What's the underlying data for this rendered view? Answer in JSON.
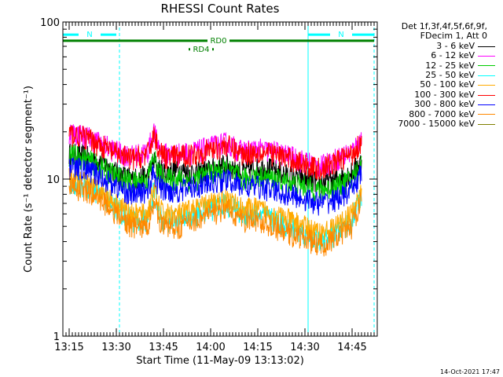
{
  "chart_data": {
    "type": "line",
    "title": "RHESSI Count Rates",
    "xlabel": "Start Time (11-May-09 13:13:02)",
    "ylabel": "Count Rate (s⁻¹ detector segment⁻¹)",
    "yscale": "log",
    "ylim": [
      1,
      100
    ],
    "xlim": [
      "13:13",
      "14:53"
    ],
    "x_ticks": [
      "13:15",
      "13:30",
      "13:45",
      "14:00",
      "14:15",
      "14:30",
      "14:45"
    ],
    "y_ticks": [
      "1",
      "10",
      "100"
    ],
    "x": [
      "13:15",
      "13:20",
      "13:25",
      "13:30",
      "13:35",
      "13:40",
      "13:42",
      "13:43",
      "13:45",
      "13:50",
      "13:55",
      "14:00",
      "14:05",
      "14:10",
      "14:15",
      "14:20",
      "14:25",
      "14:30",
      "14:35",
      "14:40",
      "14:45",
      "14:48"
    ],
    "series": [
      {
        "name": "3 - 6 keV",
        "color": "#000000",
        "values": [
          14.5,
          14,
          13,
          11,
          10,
          10.5,
          13,
          12,
          11,
          11.5,
          11,
          11.5,
          12.5,
          11,
          12,
          11.5,
          10.5,
          10,
          9.5,
          10,
          11,
          13
        ]
      },
      {
        "name": "6 - 12 keV",
        "color": "#ff00ff",
        "values": [
          20,
          19,
          17,
          15,
          14,
          15,
          20,
          17,
          14.5,
          14.5,
          15,
          16,
          17,
          15,
          15.5,
          15,
          14,
          13,
          12,
          13.5,
          15,
          18
        ]
      },
      {
        "name": "12 - 25 keV",
        "color": "#00cc00",
        "values": [
          14.5,
          13.5,
          12,
          10.5,
          9.5,
          10,
          14,
          11.5,
          10,
          10,
          10,
          11,
          11.5,
          10,
          10.5,
          10,
          9.5,
          9,
          8.5,
          9,
          10,
          12.5
        ]
      },
      {
        "name": "25 - 50 keV",
        "color": "#00ffff",
        "values": [
          9.5,
          9,
          8,
          6.5,
          5.5,
          5.5,
          8.5,
          6.5,
          5.5,
          5.5,
          6,
          6.5,
          7,
          6,
          6,
          5.5,
          5,
          4.5,
          4,
          4.5,
          5.5,
          8
        ]
      },
      {
        "name": "50 - 100 keV",
        "color": "#ffaa00",
        "values": [
          10,
          9.5,
          8.5,
          7,
          6,
          6,
          9,
          7,
          6,
          6,
          6.5,
          7,
          7.5,
          6.5,
          6.5,
          6,
          5.5,
          5,
          4.5,
          5,
          6,
          8.5
        ]
      },
      {
        "name": "100 - 300 keV",
        "color": "#ff0000",
        "values": [
          19.5,
          18.5,
          16.5,
          14.5,
          13.5,
          14.5,
          19.5,
          16.5,
          14,
          14,
          14.5,
          15.5,
          16.5,
          14.5,
          15,
          14.5,
          13.5,
          12.5,
          11.5,
          13,
          14.5,
          17.5
        ]
      },
      {
        "name": "300 - 800 keV",
        "color": "#0000ff",
        "values": [
          12,
          11.5,
          10.5,
          9,
          8,
          8.5,
          11,
          9.5,
          8.5,
          8.5,
          9,
          9.5,
          10,
          9,
          9,
          8.5,
          8,
          7.5,
          7,
          7.5,
          8.5,
          11
        ]
      },
      {
        "name": "800 - 7000 keV",
        "color": "#ff8800",
        "values": [
          9,
          8.5,
          7.5,
          6,
          5,
          5,
          7.5,
          6,
          5,
          5,
          5.5,
          6,
          6.5,
          5.5,
          5.5,
          5,
          4.5,
          4.2,
          3.8,
          4.2,
          5,
          7.5
        ]
      },
      {
        "name": "7000 - 15000 keV",
        "color": "#808000",
        "values": [
          null,
          null,
          null,
          null,
          null,
          null,
          null,
          null,
          null,
          null,
          null,
          null,
          null,
          null,
          null,
          null,
          null,
          null,
          null,
          null,
          null,
          null
        ]
      }
    ],
    "annotations": [
      {
        "text": "N",
        "color": "#00ffff",
        "y": 83,
        "x_start": "13:13",
        "x_end": "13:30"
      },
      {
        "text": "N",
        "color": "#00ffff",
        "y": 83,
        "x_start": "14:31",
        "x_end": "14:52"
      },
      {
        "text": "RD0",
        "color": "#008000",
        "y": 76,
        "x_start": "13:13",
        "x_end": "14:52"
      },
      {
        "text": "RD4",
        "color": "#008000",
        "y": 67,
        "x_start": "13:53",
        "x_end": "14:01"
      }
    ],
    "vertical_lines": [
      {
        "x": "13:13",
        "color": "#00ffff",
        "style": "solid"
      },
      {
        "x": "13:31",
        "color": "#00ffff",
        "style": "dashed"
      },
      {
        "x": "14:31",
        "color": "#00ffff",
        "style": "solid"
      },
      {
        "x": "14:52",
        "color": "#00ffff",
        "style": "dashed"
      }
    ],
    "legend_placement": "right",
    "grid": false
  },
  "legend_header": [
    "Det 1f,3f,4f,5f,6f,9f,",
    "FDecim 1, Att 0"
  ],
  "timestamp": "14-Oct-2021 17:47"
}
